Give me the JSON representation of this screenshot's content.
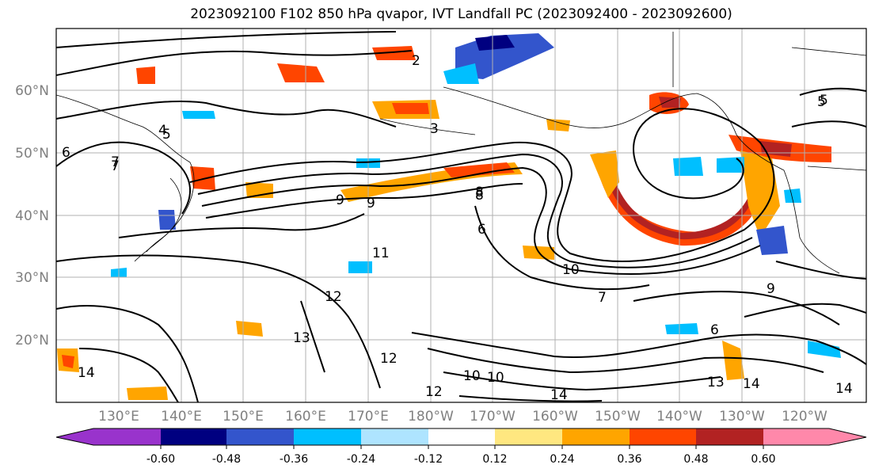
{
  "title": "2023092100 F102 850 hPa qvapor, IVT Landfall PC (2023092400 - 2023092600)",
  "lat_labels": [
    "60°N",
    "50°N",
    "40°N",
    "30°N",
    "20°N"
  ],
  "lon_labels": [
    "130°E",
    "140°E",
    "150°E",
    "160°E",
    "170°E",
    "180°W",
    "170°W",
    "160°W",
    "150°W",
    "140°W",
    "130°W",
    "120°W"
  ],
  "colorbar": {
    "colors": [
      "#9933cc",
      "#000080",
      "#3355cc",
      "#00bfff",
      "#aee4ff",
      "#ffffff",
      "#ffe780",
      "#ffa500",
      "#ff4500",
      "#b22222",
      "#ff88aa"
    ],
    "labels": [
      "-0.60",
      "-0.48",
      "-0.36",
      "-0.24",
      "-0.12",
      "0.12",
      "0.24",
      "0.36",
      "0.48",
      "0.60"
    ]
  },
  "contour_labels": [
    "2",
    "3",
    "4",
    "5",
    "6",
    "7",
    "8",
    "9",
    "10",
    "11",
    "12",
    "13",
    "14",
    "5",
    "6",
    "7",
    "10",
    "9",
    "6",
    "14",
    "12",
    "13",
    "14",
    "14",
    "9",
    "5",
    "10",
    "8",
    "12",
    "7"
  ]
}
